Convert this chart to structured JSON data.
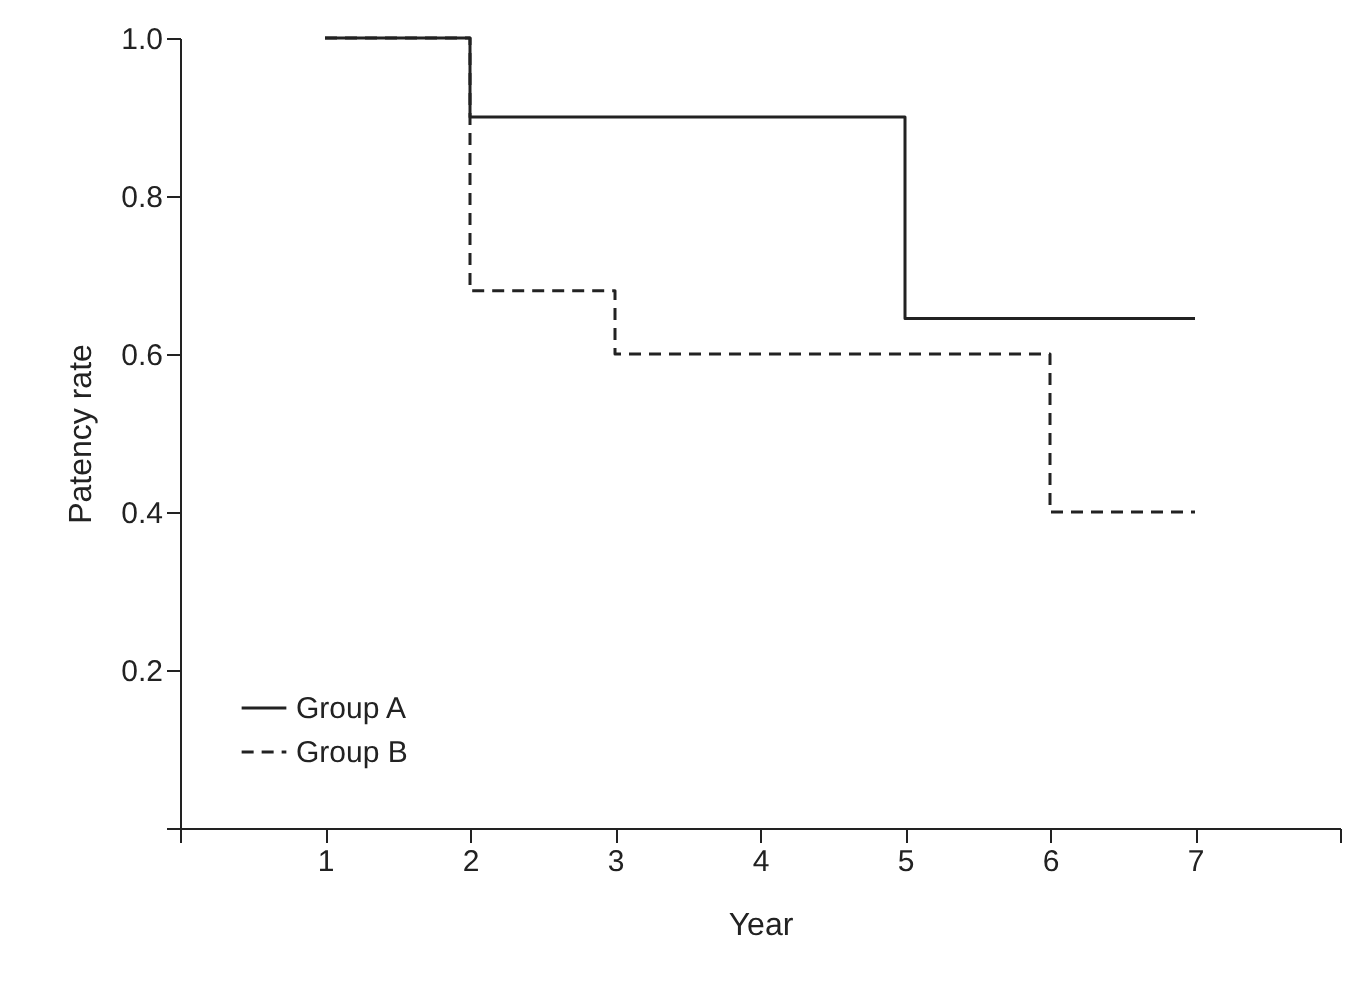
{
  "chart_data": {
    "type": "step",
    "xlabel": "Year",
    "ylabel": "Patency rate",
    "xlim": [
      0,
      8
    ],
    "xticks": [
      {
        "value": 0,
        "label": null
      },
      1,
      2,
      3,
      4,
      5,
      6,
      7,
      {
        "value": 8,
        "label": null
      }
    ],
    "ylim": [
      0,
      1
    ],
    "yticks": [
      {
        "value": 0,
        "label": null
      },
      0.2,
      0.4,
      0.6,
      0.8,
      {
        "value": 1,
        "label": "1.0"
      }
    ],
    "grid": false,
    "legend": "bottom left",
    "marker": "none",
    "series": [
      {
        "name": "Group A",
        "color": "#222222",
        "line_style": "solid",
        "x": [
          1,
          2,
          5,
          7
        ],
        "values": [
          1.0,
          0.9,
          0.645,
          0.645
        ]
      },
      {
        "name": "Group B",
        "color": "#222222",
        "line_style": "dashed",
        "x": [
          1,
          2,
          3,
          6,
          7
        ],
        "values": [
          1.0,
          0.68,
          0.6,
          0.4,
          0.4
        ]
      }
    ]
  }
}
